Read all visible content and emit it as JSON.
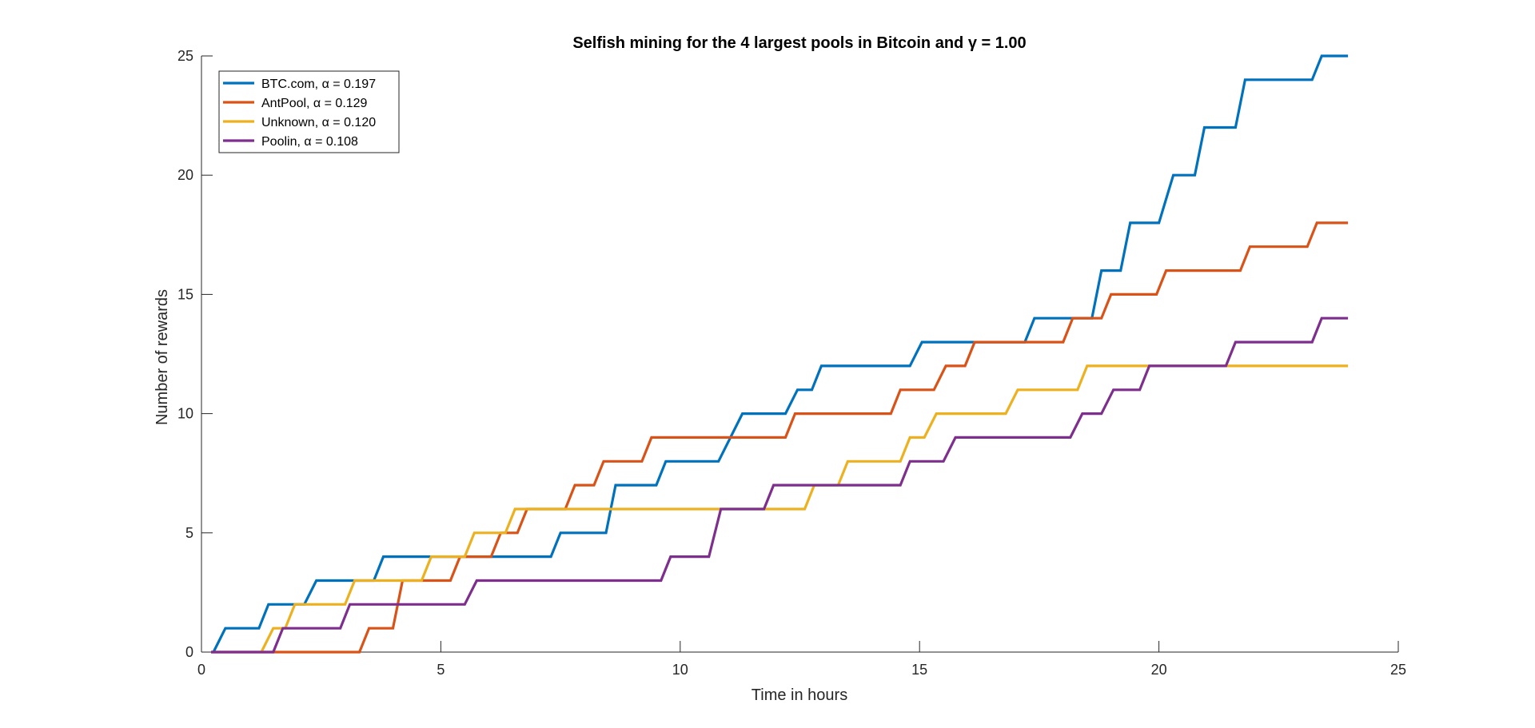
{
  "chart_data": {
    "type": "line",
    "title": "Selfish mining for the 4 largest pools in Bitcoin and γ = 1.00",
    "xlabel": "Time in hours",
    "ylabel": "Number of rewards",
    "xlim": [
      0,
      25
    ],
    "ylim": [
      0,
      25
    ],
    "xticks": [
      0,
      5,
      10,
      15,
      20,
      25
    ],
    "yticks": [
      0,
      5,
      10,
      15,
      20,
      25
    ],
    "grid": false,
    "legend_position": "top-left",
    "step_style": "ramp",
    "series": [
      {
        "name": "BTC.com, α = 0.197",
        "color": "#0072BD",
        "points": [
          [
            0.25,
            0
          ],
          [
            0.5,
            1
          ],
          [
            1.2,
            1
          ],
          [
            1.4,
            2
          ],
          [
            2.15,
            2
          ],
          [
            2.4,
            3
          ],
          [
            3.1,
            3
          ],
          [
            3.3,
            3
          ],
          [
            3.6,
            3
          ],
          [
            3.8,
            4
          ],
          [
            5.7,
            4
          ],
          [
            5.9,
            4
          ],
          [
            7.3,
            4
          ],
          [
            7.5,
            5
          ],
          [
            8.45,
            5
          ],
          [
            8.65,
            7
          ],
          [
            9.5,
            7
          ],
          [
            9.7,
            8
          ],
          [
            10.6,
            8
          ],
          [
            10.8,
            8
          ],
          [
            11.3,
            10
          ],
          [
            12.2,
            10
          ],
          [
            12.45,
            11
          ],
          [
            12.75,
            11
          ],
          [
            12.95,
            12
          ],
          [
            14.8,
            12
          ],
          [
            15.05,
            13
          ],
          [
            16.3,
            13
          ],
          [
            17.2,
            13
          ],
          [
            17.4,
            14
          ],
          [
            18.5,
            14
          ],
          [
            18.6,
            14
          ],
          [
            18.8,
            16
          ],
          [
            19.2,
            16
          ],
          [
            19.4,
            18
          ],
          [
            20.0,
            18
          ],
          [
            20.3,
            20
          ],
          [
            20.75,
            20
          ],
          [
            20.95,
            22
          ],
          [
            21.6,
            22
          ],
          [
            21.8,
            24
          ],
          [
            23.2,
            24
          ],
          [
            23.4,
            25
          ],
          [
            23.95,
            25
          ]
        ]
      },
      {
        "name": "AntPool, α = 0.129",
        "color": "#D95319",
        "points": [
          [
            0.2,
            0
          ],
          [
            3.3,
            0
          ],
          [
            3.5,
            1
          ],
          [
            4.0,
            1
          ],
          [
            4.2,
            3
          ],
          [
            5.2,
            3
          ],
          [
            5.4,
            4
          ],
          [
            6.05,
            4
          ],
          [
            6.25,
            5
          ],
          [
            6.6,
            5
          ],
          [
            6.8,
            6
          ],
          [
            7.6,
            6
          ],
          [
            7.8,
            7
          ],
          [
            8.2,
            7
          ],
          [
            8.4,
            8
          ],
          [
            9.2,
            8
          ],
          [
            9.4,
            9
          ],
          [
            10.75,
            9
          ],
          [
            11.0,
            9
          ],
          [
            12.2,
            9
          ],
          [
            12.4,
            10
          ],
          [
            14.4,
            10
          ],
          [
            14.6,
            11
          ],
          [
            15.3,
            11
          ],
          [
            15.55,
            12
          ],
          [
            15.95,
            12
          ],
          [
            16.15,
            13
          ],
          [
            18.0,
            13
          ],
          [
            18.2,
            14
          ],
          [
            18.8,
            14
          ],
          [
            19.0,
            15
          ],
          [
            19.95,
            15
          ],
          [
            20.15,
            16
          ],
          [
            21.7,
            16
          ],
          [
            21.9,
            17
          ],
          [
            23.1,
            17
          ],
          [
            23.3,
            18
          ],
          [
            23.95,
            18
          ]
        ]
      },
      {
        "name": "Unknown, α = 0.120",
        "color": "#EDB120",
        "points": [
          [
            1.25,
            0
          ],
          [
            1.5,
            1
          ],
          [
            1.75,
            1
          ],
          [
            1.95,
            2
          ],
          [
            3.0,
            2
          ],
          [
            3.2,
            3
          ],
          [
            4.6,
            3
          ],
          [
            4.8,
            4
          ],
          [
            5.5,
            4
          ],
          [
            5.7,
            5
          ],
          [
            6.35,
            5
          ],
          [
            6.55,
            6
          ],
          [
            7.2,
            6
          ],
          [
            12.6,
            6
          ],
          [
            12.8,
            7
          ],
          [
            13.3,
            7
          ],
          [
            13.5,
            8
          ],
          [
            14.6,
            8
          ],
          [
            14.8,
            9
          ],
          [
            15.1,
            9
          ],
          [
            15.35,
            10
          ],
          [
            16.8,
            10
          ],
          [
            17.05,
            11
          ],
          [
            18.3,
            11
          ],
          [
            18.5,
            12
          ],
          [
            23.95,
            12
          ]
        ]
      },
      {
        "name": "Poolin, α = 0.108",
        "color": "#7E2F8E",
        "points": [
          [
            0.2,
            0
          ],
          [
            1.5,
            0
          ],
          [
            1.7,
            1
          ],
          [
            2.9,
            1
          ],
          [
            3.1,
            2
          ],
          [
            5.5,
            2
          ],
          [
            5.75,
            3
          ],
          [
            9.6,
            3
          ],
          [
            9.8,
            4
          ],
          [
            10.6,
            4
          ],
          [
            10.85,
            6
          ],
          [
            11.75,
            6
          ],
          [
            11.95,
            7
          ],
          [
            14.6,
            7
          ],
          [
            14.8,
            8
          ],
          [
            15.5,
            8
          ],
          [
            15.75,
            9
          ],
          [
            18.15,
            9
          ],
          [
            18.4,
            10
          ],
          [
            18.8,
            10
          ],
          [
            19.05,
            11
          ],
          [
            19.6,
            11
          ],
          [
            19.8,
            12
          ],
          [
            21.4,
            12
          ],
          [
            21.6,
            13
          ],
          [
            23.2,
            13
          ],
          [
            23.4,
            14
          ],
          [
            23.95,
            14
          ]
        ]
      }
    ]
  }
}
